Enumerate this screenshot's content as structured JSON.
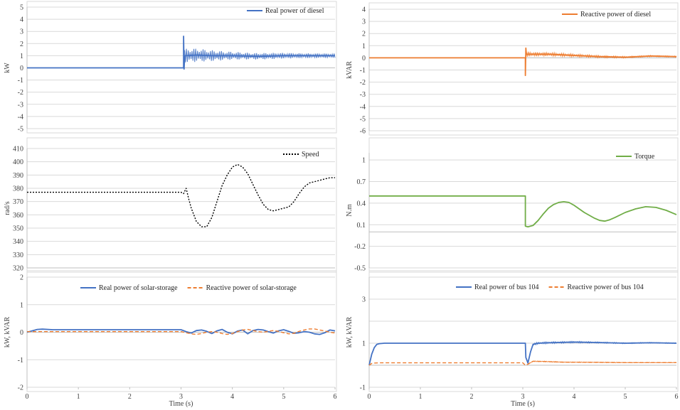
{
  "chart_data": [
    {
      "id": "diesel-real",
      "type": "line",
      "title": "",
      "xlabel": "",
      "ylabel": "kW",
      "xlim": [
        0,
        6
      ],
      "ylim": [
        -5,
        5
      ],
      "yticks": [
        5,
        4,
        3,
        2,
        1,
        0,
        -1,
        -2,
        -3,
        -4,
        -5
      ],
      "xticks": [],
      "grid": "horizontal",
      "legend_position": "top-right",
      "series": [
        {
          "name": "Real power of diesel",
          "color": "#4472C4",
          "dash": "solid",
          "x": [
            0,
            3.05,
            3.05,
            3.06,
            3.07,
            3.1,
            3.3,
            3.6,
            4.0,
            4.5,
            5.0,
            5.5,
            6.0
          ],
          "y": [
            0,
            0,
            2.6,
            -0.1,
            1.0,
            1.0,
            1.05,
            1.0,
            1.0,
            0.95,
            1.0,
            1.0,
            1.0
          ],
          "band": [
            [
              3.07,
              1.05
            ],
            [
              3.1,
              1.15
            ],
            [
              3.3,
              1.1
            ],
            [
              3.6,
              0.9
            ],
            [
              3.9,
              0.7
            ],
            [
              4.3,
              0.55
            ],
            [
              4.8,
              0.5
            ],
            [
              5.3,
              0.4
            ],
            [
              6.0,
              0.35
            ]
          ]
        }
      ]
    },
    {
      "id": "diesel-reactive",
      "type": "line",
      "title": "",
      "xlabel": "",
      "ylabel": "kVAR",
      "xlim": [
        0,
        6
      ],
      "ylim": [
        -6,
        4
      ],
      "yticks": [
        4,
        3,
        2,
        1,
        0,
        -1,
        -2,
        -3,
        -4,
        -5,
        -6
      ],
      "xticks": [],
      "grid": "horizontal",
      "legend_position": "top-right",
      "series": [
        {
          "name": "Reactive power of diesel",
          "color": "#ED7D31",
          "dash": "solid",
          "x": [
            0,
            3.05,
            3.05,
            3.06,
            3.07,
            3.2,
            3.5,
            4.0,
            4.5,
            5.0,
            5.5,
            6.0
          ],
          "y": [
            0,
            0,
            -1.45,
            0.8,
            0.3,
            0.3,
            0.3,
            0.2,
            0.1,
            0.05,
            0.15,
            0.1
          ],
          "band": [
            [
              3.07,
              0.45
            ],
            [
              3.2,
              0.35
            ],
            [
              3.5,
              0.3
            ],
            [
              4.0,
              0.25
            ],
            [
              4.5,
              0.2
            ],
            [
              5.0,
              0.15
            ],
            [
              5.5,
              0.12
            ],
            [
              6.0,
              0.1
            ]
          ]
        }
      ]
    },
    {
      "id": "speed",
      "type": "line",
      "title": "",
      "xlabel": "",
      "ylabel": "rad/s",
      "xlim": [
        0,
        6
      ],
      "ylim": [
        320,
        410
      ],
      "yticks": [
        410,
        400,
        390,
        380,
        370,
        360,
        350,
        340,
        330,
        320
      ],
      "xticks": [],
      "grid": "horizontal",
      "legend_position": "top-right",
      "series": [
        {
          "name": "Speed",
          "color": "#000000",
          "dash": "dotted",
          "x": [
            0,
            3.0,
            3.05,
            3.1,
            3.15,
            3.2,
            3.3,
            3.4,
            3.5,
            3.6,
            3.7,
            3.8,
            3.9,
            4.0,
            4.1,
            4.2,
            4.3,
            4.4,
            4.5,
            4.6,
            4.7,
            4.8,
            4.9,
            5.0,
            5.1,
            5.2,
            5.3,
            5.4,
            5.5,
            5.6,
            5.7,
            5.8,
            5.9,
            6.0
          ],
          "y": [
            377,
            377,
            376,
            380,
            372,
            365,
            355,
            351,
            351,
            358,
            370,
            382,
            390,
            396,
            398,
            396,
            391,
            383,
            375,
            368,
            364,
            363,
            364,
            365,
            366,
            370,
            376,
            381,
            384,
            385,
            386,
            387,
            388,
            388
          ]
        }
      ]
    },
    {
      "id": "torque",
      "type": "line",
      "title": "",
      "xlabel": "",
      "ylabel": "N.m",
      "xlim": [
        0,
        6
      ],
      "ylim": [
        -0.5,
        1.1
      ],
      "yticks": [
        1,
        0.7,
        0.4,
        0.1,
        -0.2,
        -0.5
      ],
      "xticks": [],
      "grid": "horizontal",
      "legend_position": "top-right",
      "series": [
        {
          "name": "Torque",
          "color": "#70AD47",
          "dash": "solid",
          "x": [
            0,
            3.05,
            3.05,
            3.1,
            3.2,
            3.3,
            3.4,
            3.5,
            3.6,
            3.7,
            3.8,
            3.9,
            4.0,
            4.2,
            4.4,
            4.5,
            4.6,
            4.7,
            4.8,
            5.0,
            5.2,
            5.4,
            5.6,
            5.8,
            6.0
          ],
          "y": [
            0.5,
            0.5,
            0.08,
            0.07,
            0.09,
            0.16,
            0.25,
            0.33,
            0.38,
            0.41,
            0.42,
            0.41,
            0.37,
            0.27,
            0.19,
            0.16,
            0.15,
            0.17,
            0.2,
            0.27,
            0.32,
            0.35,
            0.34,
            0.3,
            0.24
          ]
        }
      ]
    },
    {
      "id": "solar-storage",
      "type": "line",
      "title": "",
      "xlabel": "Time (s)",
      "ylabel": "kW, kVAR",
      "xlim": [
        0,
        6
      ],
      "ylim": [
        -2,
        2
      ],
      "yticks": [
        2,
        1,
        0,
        -1,
        -2
      ],
      "xticks": [
        0,
        1,
        2,
        3,
        4,
        5,
        6
      ],
      "grid": "horizontal",
      "legend_position": "top",
      "series": [
        {
          "name": "Real power of solar-storage",
          "color": "#4472C4",
          "dash": "solid",
          "x": [
            0,
            0.1,
            0.2,
            0.3,
            0.5,
            1.0,
            2.0,
            3.0,
            3.1,
            3.2,
            3.3,
            3.4,
            3.5,
            3.6,
            3.7,
            3.8,
            3.9,
            4.0,
            4.1,
            4.2,
            4.3,
            4.4,
            4.5,
            4.6,
            4.7,
            4.8,
            4.9,
            5.0,
            5.1,
            5.2,
            5.3,
            5.4,
            5.5,
            5.6,
            5.7,
            5.8,
            5.9,
            6.0
          ],
          "y": [
            0,
            0.05,
            0.1,
            0.11,
            0.09,
            0.09,
            0.09,
            0.09,
            0.02,
            -0.03,
            0.06,
            0.08,
            0.03,
            -0.05,
            0.05,
            0.1,
            0.0,
            -0.06,
            0.04,
            0.08,
            -0.06,
            0.06,
            0.1,
            0.08,
            0.02,
            -0.03,
            0.05,
            0.09,
            0.03,
            -0.04,
            -0.02,
            0.02,
            0.0,
            -0.06,
            -0.08,
            -0.02,
            0.08,
            0.05
          ]
        },
        {
          "name": "Reactive power of solar-storage",
          "color": "#ED7D31",
          "dash": "dashed",
          "x": [
            0,
            1.0,
            2.0,
            3.0,
            3.1,
            3.2,
            3.3,
            3.4,
            3.5,
            3.6,
            3.7,
            3.8,
            3.9,
            4.0,
            4.1,
            4.2,
            4.3,
            4.4,
            4.5,
            4.6,
            4.7,
            4.8,
            4.9,
            5.0,
            5.1,
            5.2,
            5.3,
            5.4,
            5.5,
            5.6,
            5.7,
            5.8,
            5.9,
            6.0
          ],
          "y": [
            0.02,
            0.02,
            0.02,
            0.02,
            -0.02,
            -0.06,
            -0.08,
            -0.05,
            0.0,
            0.02,
            0.0,
            -0.05,
            -0.08,
            -0.05,
            0.02,
            0.08,
            0.1,
            0.06,
            0.02,
            0.0,
            0.03,
            0.06,
            0.03,
            -0.02,
            -0.06,
            -0.04,
            0.03,
            0.08,
            0.12,
            0.12,
            0.08,
            0.04,
            0.0,
            -0.03
          ]
        }
      ]
    },
    {
      "id": "bus104",
      "type": "line",
      "title": "",
      "xlabel": "Time (s)",
      "ylabel": "kW, kVAR",
      "xlim": [
        0,
        6
      ],
      "ylim": [
        -1,
        4
      ],
      "yticks": [
        3,
        1,
        -1
      ],
      "yticks_gridlines": [
        4,
        3,
        2,
        1,
        0,
        -1
      ],
      "xticks": [
        0,
        1,
        2,
        3,
        4,
        5,
        6
      ],
      "grid": "horizontal",
      "legend_position": "top",
      "series": [
        {
          "name": "Real power of bus 104",
          "color": "#4472C4",
          "dash": "solid",
          "x": [
            0,
            0.05,
            0.1,
            0.15,
            0.2,
            0.3,
            1.0,
            2.0,
            3.0,
            3.05,
            3.06,
            3.1,
            3.15,
            3.2,
            3.3,
            3.5,
            4.0,
            4.5,
            5.0,
            5.5,
            6.0
          ],
          "y": [
            0,
            0.5,
            0.8,
            0.95,
            0.98,
            1.0,
            1.0,
            1.0,
            1.0,
            1.0,
            0.35,
            0.1,
            0.6,
            0.95,
            1.0,
            1.02,
            1.05,
            1.03,
            1.0,
            1.02,
            1.0
          ],
          "band": [
            [
              3.2,
              0.1
            ],
            [
              4.0,
              0.08
            ],
            [
              5.0,
              0.05
            ],
            [
              6.0,
              0.04
            ]
          ]
        },
        {
          "name": "Reactive power of bus 104",
          "color": "#ED7D31",
          "dash": "dashed",
          "x": [
            0,
            0.05,
            0.1,
            0.2,
            0.5,
            1.0,
            2.0,
            3.0,
            3.05,
            3.1,
            3.2,
            3.4,
            3.8,
            4.5,
            5.0,
            6.0
          ],
          "y": [
            0.0,
            0.08,
            0.1,
            0.11,
            0.11,
            0.11,
            0.11,
            0.11,
            0.0,
            0.05,
            0.18,
            0.17,
            0.14,
            0.13,
            0.12,
            0.12
          ],
          "band": [
            [
              3.1,
              0.04
            ],
            [
              4.0,
              0.03
            ],
            [
              6.0,
              0.02
            ]
          ]
        }
      ]
    }
  ]
}
